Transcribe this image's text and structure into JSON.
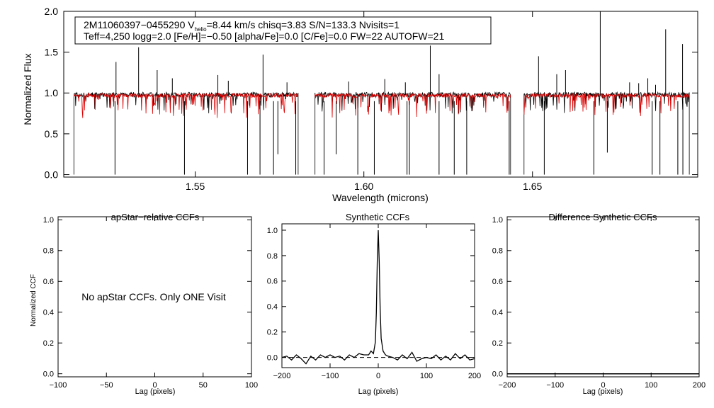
{
  "header": {
    "star_id": "2M11060397−0455290",
    "vhelio_prefix": "V",
    "vhelio_sub": "helio",
    "vhelio_value": "=8.44 km/s",
    "chisq": "chisq=3.83",
    "snr": "S/N=133.3",
    "nvisits": "Nvisits=1",
    "params_line": "Teff=4,250 logg=2.0 [Fe/H]=−0.50 [alpha/Fe]=0.0 [C/Fe]=0.0 FW=22 AUTOFW=21"
  },
  "messages": {
    "no_ccf": "No apStar CCFs.  Only ONE Visit"
  },
  "colors": {
    "observed": "#000000",
    "model": "#dd0000",
    "axes": "#000000"
  },
  "chart_data": [
    {
      "id": "spectrum",
      "type": "line",
      "title": "",
      "xlabel": "Wavelength (microns)",
      "ylabel": "Normalized Flux",
      "xlim": [
        1.511,
        1.699
      ],
      "ylim": [
        -0.03,
        2.0
      ],
      "xticks": [
        1.55,
        1.6,
        1.65
      ],
      "xtick_labels": [
        "1.55",
        "1.60",
        "1.65"
      ],
      "yticks": [
        0.0,
        0.5,
        1.0,
        1.5,
        2.0
      ],
      "ytick_labels": [
        "0.0",
        "0.5",
        "1.0",
        "1.5",
        "2.0"
      ],
      "chip_ranges": [
        [
          1.514,
          1.5805
        ],
        [
          1.5855,
          1.6435
        ],
        [
          1.6475,
          1.6965
        ]
      ],
      "series": [
        {
          "name": "observed",
          "color": "#000000",
          "continuum": 0.98
        },
        {
          "name": "model",
          "color": "#dd0000",
          "continuum": 0.97
        }
      ],
      "emission_spikes": [
        {
          "x": 1.5265,
          "y": 1.38
        },
        {
          "x": 1.5332,
          "y": 1.56
        },
        {
          "x": 1.5387,
          "y": 1.28
        },
        {
          "x": 1.5432,
          "y": 1.18
        },
        {
          "x": 1.5567,
          "y": 1.22
        },
        {
          "x": 1.5598,
          "y": 1.15
        },
        {
          "x": 1.5701,
          "y": 1.47
        },
        {
          "x": 1.5772,
          "y": 1.13
        },
        {
          "x": 1.5955,
          "y": 1.14
        },
        {
          "x": 1.6062,
          "y": 1.17
        },
        {
          "x": 1.6123,
          "y": 1.13
        },
        {
          "x": 1.6197,
          "y": 1.58
        },
        {
          "x": 1.6223,
          "y": 1.23
        },
        {
          "x": 1.6518,
          "y": 1.45
        },
        {
          "x": 1.6572,
          "y": 1.23
        },
        {
          "x": 1.6598,
          "y": 1.28
        },
        {
          "x": 1.6701,
          "y": 2.0
        },
        {
          "x": 1.6788,
          "y": 1.13
        },
        {
          "x": 1.6815,
          "y": 1.12
        },
        {
          "x": 1.6842,
          "y": 1.18
        },
        {
          "x": 1.6865,
          "y": 1.1
        },
        {
          "x": 1.6895,
          "y": 1.78
        },
        {
          "x": 1.6945,
          "y": 1.6
        }
      ],
      "absorption_lines": [
        {
          "x": 1.5262,
          "y": 0.0
        },
        {
          "x": 1.5468,
          "y": 0.0
        },
        {
          "x": 1.5655,
          "y": 0.0
        },
        {
          "x": 1.5692,
          "y": 0.0
        },
        {
          "x": 1.5732,
          "y": 0.0
        },
        {
          "x": 1.5745,
          "y": 0.25
        },
        {
          "x": 1.5798,
          "y": 0.0
        },
        {
          "x": 1.5882,
          "y": 0.0
        },
        {
          "x": 1.5918,
          "y": 0.25
        },
        {
          "x": 1.5982,
          "y": 0.0
        },
        {
          "x": 1.6031,
          "y": 0.0
        },
        {
          "x": 1.6128,
          "y": 0.0
        },
        {
          "x": 1.6135,
          "y": 0.0
        },
        {
          "x": 1.6223,
          "y": 0.0
        },
        {
          "x": 1.6268,
          "y": 0.0
        },
        {
          "x": 1.6305,
          "y": 0.0
        },
        {
          "x": 1.6431,
          "y": 0.0
        },
        {
          "x": 1.6535,
          "y": 0.0
        },
        {
          "x": 1.6682,
          "y": 0.0
        },
        {
          "x": 1.6722,
          "y": 0.27
        },
        {
          "x": 1.6855,
          "y": 0.0
        },
        {
          "x": 1.6878,
          "y": 0.0
        },
        {
          "x": 1.6931,
          "y": 0.0
        },
        {
          "x": 1.6946,
          "y": 0.0
        }
      ]
    },
    {
      "id": "apstar_ccf",
      "type": "line",
      "title": "apStar−relative CCFs",
      "xlabel": "Lag (pixels)",
      "ylabel": "Normalized CCF",
      "xlim": [
        -100,
        100
      ],
      "ylim": [
        -0.02,
        1.02
      ],
      "xticks": [
        -100,
        -50,
        0,
        50,
        100
      ],
      "xtick_labels": [
        "−100",
        "−50",
        "0",
        "50",
        "100"
      ],
      "yticks": [
        0.0,
        0.2,
        0.4,
        0.6,
        0.8,
        1.0
      ],
      "ytick_labels": [
        "0.0",
        "0.2",
        "0.4",
        "0.6",
        "0.8",
        "1.0"
      ],
      "series": []
    },
    {
      "id": "synthetic_ccf",
      "type": "line",
      "title": "Synthetic CCFs",
      "xlabel": "Lag (pixels)",
      "ylabel": "",
      "xlim": [
        -200,
        200
      ],
      "ylim": [
        -0.08,
        1.05
      ],
      "xticks": [
        -200,
        -100,
        0,
        100,
        200
      ],
      "xtick_labels": [
        "−200",
        "−100",
        "0",
        "100",
        "200"
      ],
      "yticks": [
        0.0,
        0.2,
        0.4,
        0.6,
        0.8,
        1.0
      ],
      "ytick_labels": [
        "0.0",
        "0.2",
        "0.4",
        "0.6",
        "0.8",
        "1.0"
      ],
      "reference_line": {
        "y": 0.0,
        "style": "dashed"
      },
      "series": [
        {
          "name": "ccf",
          "x": [
            -200,
            -190,
            -180,
            -170,
            -160,
            -150,
            -140,
            -130,
            -120,
            -110,
            -100,
            -90,
            -80,
            -70,
            -60,
            -50,
            -40,
            -30,
            -20,
            -15,
            -10,
            -6,
            -4,
            -2,
            0,
            2,
            4,
            6,
            10,
            15,
            20,
            30,
            40,
            50,
            60,
            70,
            80,
            90,
            100,
            110,
            120,
            130,
            140,
            150,
            160,
            170,
            180,
            190,
            200
          ],
          "y": [
            0.0,
            0.01,
            -0.02,
            0.02,
            -0.01,
            -0.05,
            0.01,
            -0.02,
            0.02,
            0.0,
            0.02,
            0.0,
            0.01,
            -0.02,
            0.02,
            0.0,
            0.03,
            0.02,
            0.02,
            0.05,
            0.03,
            0.12,
            0.35,
            0.75,
            1.0,
            0.75,
            0.38,
            0.15,
            0.05,
            0.02,
            0.01,
            0.0,
            -0.02,
            0.02,
            -0.01,
            0.04,
            -0.03,
            -0.01,
            0.0,
            -0.01,
            0.02,
            -0.02,
            0.01,
            -0.02,
            0.03,
            -0.01,
            0.02,
            -0.02,
            -0.01
          ]
        }
      ]
    },
    {
      "id": "difference_ccf",
      "type": "line",
      "title": "Difference Synthetic CCFs",
      "xlabel": "Lag (pixels)",
      "ylabel": "",
      "xlim": [
        -200,
        200
      ],
      "ylim": [
        -0.02,
        1.02
      ],
      "xticks": [
        -200,
        -100,
        0,
        100,
        200
      ],
      "xtick_labels": [
        "−200",
        "−100",
        "0",
        "100",
        "200"
      ],
      "yticks": [
        0.0,
        0.2,
        0.4,
        0.6,
        0.8,
        1.0
      ],
      "ytick_labels": [
        "0.0",
        "0.2",
        "0.4",
        "0.6",
        "0.8",
        "1.0"
      ],
      "series": [
        {
          "name": "difference",
          "x": [
            -200,
            200
          ],
          "y": [
            0.0,
            0.0
          ]
        }
      ]
    }
  ]
}
